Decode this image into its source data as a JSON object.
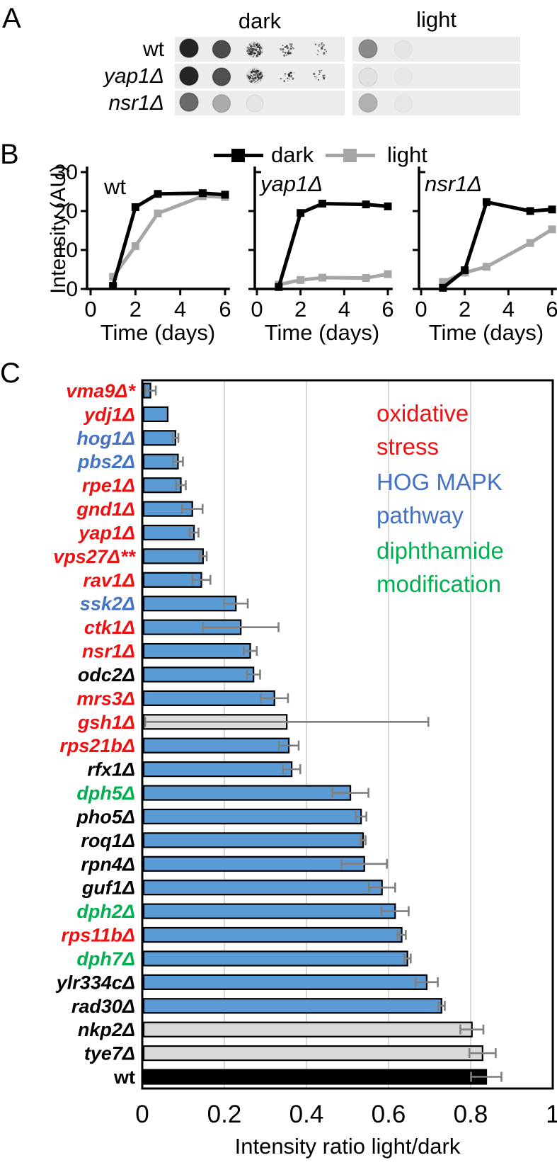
{
  "colors": {
    "red": "#ee1111",
    "blue": "#4472c4",
    "green": "#00b050",
    "bar_blue": "#5b9bd5",
    "bar_gray": "#d9d9d9",
    "bar_black": "#000000",
    "error_gray": "#7f7f7f",
    "grid_gray": "#d9d9d9",
    "strip_bg": "#ececec",
    "dark_series": "#000000",
    "light_series": "#a6a6a6"
  },
  "panel_a": {
    "label": "A",
    "headers": {
      "dark": "dark",
      "light": "light"
    },
    "rows": [
      {
        "name": "wt",
        "italic": false,
        "dark_spots": [
          {
            "darkness": 0.92,
            "style": "solid"
          },
          {
            "darkness": 0.74,
            "style": "solid"
          },
          {
            "darkness": 0.5,
            "style": "speckle"
          },
          {
            "darkness": 0.2,
            "style": "dots"
          },
          {
            "darkness": 0.07,
            "style": "dots"
          }
        ],
        "light_spots": [
          {
            "darkness": 0.45,
            "style": "solid"
          },
          {
            "darkness": 0.07,
            "style": "faint"
          },
          {
            "darkness": 0,
            "style": "none"
          },
          {
            "darkness": 0,
            "style": "none"
          },
          {
            "darkness": 0,
            "style": "none"
          }
        ]
      },
      {
        "name": "yap1Δ",
        "italic": true,
        "dark_spots": [
          {
            "darkness": 0.92,
            "style": "solid"
          },
          {
            "darkness": 0.72,
            "style": "solid"
          },
          {
            "darkness": 0.48,
            "style": "speckle"
          },
          {
            "darkness": 0.17,
            "style": "dots"
          },
          {
            "darkness": 0.06,
            "style": "dots"
          }
        ],
        "light_spots": [
          {
            "darkness": 0.13,
            "style": "faint"
          },
          {
            "darkness": 0.04,
            "style": "faint"
          },
          {
            "darkness": 0,
            "style": "none"
          },
          {
            "darkness": 0,
            "style": "none"
          },
          {
            "darkness": 0,
            "style": "none"
          }
        ]
      },
      {
        "name": "nsr1Δ",
        "italic": true,
        "dark_spots": [
          {
            "darkness": 0.6,
            "style": "solid"
          },
          {
            "darkness": 0.3,
            "style": "solid"
          },
          {
            "darkness": 0.1,
            "style": "faint"
          },
          {
            "darkness": 0,
            "style": "none"
          },
          {
            "darkness": 0,
            "style": "none"
          }
        ],
        "light_spots": [
          {
            "darkness": 0.27,
            "style": "solid"
          },
          {
            "darkness": 0.05,
            "style": "faint"
          },
          {
            "darkness": 0,
            "style": "none"
          },
          {
            "darkness": 0,
            "style": "none"
          },
          {
            "darkness": 0,
            "style": "none"
          }
        ]
      }
    ]
  },
  "panel_b": {
    "label": "B"
  },
  "panel_c": {
    "label": "C",
    "legend": [
      {
        "text": "oxidative\nstress",
        "color_key": "red"
      },
      {
        "text": "HOG MAPK\npathway",
        "color_key": "blue"
      },
      {
        "text": "diphthamide\nmodification",
        "color_key": "green"
      }
    ]
  },
  "chart_data": [
    {
      "type": "line",
      "title": "wt",
      "title_italic": false,
      "xlabel": "Time (days)",
      "ylabel": "Intensity (AU)",
      "x": [
        1,
        2,
        3,
        5,
        6
      ],
      "xlim": [
        0,
        6
      ],
      "ylim": [
        0,
        30
      ],
      "xticks": [
        0,
        2,
        4,
        6
      ],
      "yticks": [
        0,
        10,
        20,
        30
      ],
      "show_ytick_labels": true,
      "series": [
        {
          "name": "dark",
          "color": "#000000",
          "values": [
            0.8,
            21.0,
            24.4,
            24.6,
            24.2
          ]
        },
        {
          "name": "light",
          "color": "#a6a6a6",
          "values": [
            3.1,
            11.0,
            19.4,
            23.8,
            23.6
          ]
        }
      ],
      "legend_position": "top"
    },
    {
      "type": "line",
      "title": "yap1Δ",
      "title_italic": true,
      "xlabel": "Time (days)",
      "ylabel": "",
      "x": [
        1,
        2,
        3,
        5,
        6
      ],
      "xlim": [
        0,
        6
      ],
      "ylim": [
        0,
        30
      ],
      "xticks": [
        0,
        2,
        4,
        6
      ],
      "yticks": [
        0,
        10,
        20,
        30
      ],
      "show_ytick_labels": false,
      "series": [
        {
          "name": "dark",
          "color": "#000000",
          "values": [
            0.5,
            19.5,
            21.9,
            21.7,
            21.2
          ]
        },
        {
          "name": "light",
          "color": "#a6a6a6",
          "values": [
            1.1,
            2.3,
            2.9,
            2.8,
            3.8
          ]
        }
      ]
    },
    {
      "type": "line",
      "title": "nsr1Δ",
      "title_italic": true,
      "xlabel": "Time (days)",
      "ylabel": "",
      "x": [
        1,
        2,
        3,
        5,
        6
      ],
      "xlim": [
        0,
        6
      ],
      "ylim": [
        0,
        30
      ],
      "xticks": [
        0,
        2,
        4,
        6
      ],
      "yticks": [
        0,
        10,
        20,
        30
      ],
      "show_ytick_labels": false,
      "series": [
        {
          "name": "dark",
          "color": "#000000",
          "values": [
            0.3,
            4.8,
            22.3,
            20.0,
            20.4
          ]
        },
        {
          "name": "light",
          "color": "#a6a6a6",
          "values": [
            1.8,
            4.2,
            5.7,
            11.8,
            15.3
          ]
        }
      ]
    },
    {
      "type": "bar",
      "orientation": "horizontal",
      "xlabel": "Intensity ratio light/dark",
      "xlim": [
        0,
        1
      ],
      "xticks": [
        0,
        0.2,
        0.4,
        0.6,
        0.8,
        1
      ],
      "grid": true,
      "categories": [
        "vma9Δ*",
        "ydj1Δ",
        "hog1Δ",
        "pbs2Δ",
        "rpe1Δ",
        "gnd1Δ",
        "yap1Δ",
        "vps27Δ**",
        "rav1Δ",
        "ssk2Δ",
        "ctk1Δ",
        "nsr1Δ",
        "odc2Δ",
        "mrs3Δ",
        "gsh1Δ",
        "rps21bΔ",
        "rfx1Δ",
        "dph5Δ",
        "pho5Δ",
        "roq1Δ",
        "rpn4Δ",
        "guf1Δ",
        "dph2Δ",
        "rps11bΔ",
        "dph7Δ",
        "ylr334cΔ",
        "rad30Δ",
        "nkp2Δ",
        "tye7Δ",
        "wt"
      ],
      "values": [
        0.02,
        0.062,
        0.081,
        0.087,
        0.094,
        0.122,
        0.126,
        0.148,
        0.144,
        0.228,
        0.24,
        0.263,
        0.271,
        0.322,
        0.352,
        0.357,
        0.364,
        0.507,
        0.533,
        0.538,
        0.541,
        0.584,
        0.616,
        0.632,
        0.646,
        0.693,
        0.729,
        0.803,
        0.829,
        0.838
      ],
      "errors": [
        0.013,
        0,
        0.007,
        0.012,
        0.012,
        0.025,
        0.011,
        0.009,
        0.022,
        0.029,
        0.092,
        0.016,
        0.016,
        0.033,
        0.345,
        0.024,
        0.021,
        0.044,
        0.013,
        0.006,
        0.055,
        0.032,
        0.033,
        0.01,
        0.008,
        0.027,
        0.008,
        0.028,
        0.032,
        0.037
      ],
      "bar_colors": [
        "#5b9bd5",
        "#5b9bd5",
        "#5b9bd5",
        "#5b9bd5",
        "#5b9bd5",
        "#5b9bd5",
        "#5b9bd5",
        "#5b9bd5",
        "#5b9bd5",
        "#5b9bd5",
        "#5b9bd5",
        "#5b9bd5",
        "#5b9bd5",
        "#5b9bd5",
        "#dcdcdc",
        "#5b9bd5",
        "#5b9bd5",
        "#5b9bd5",
        "#5b9bd5",
        "#5b9bd5",
        "#5b9bd5",
        "#5b9bd5",
        "#5b9bd5",
        "#5b9bd5",
        "#5b9bd5",
        "#5b9bd5",
        "#5b9bd5",
        "#d9d9d9",
        "#d9d9d9",
        "#000000"
      ],
      "label_colors": [
        "#ee1111",
        "#ee1111",
        "#4472c4",
        "#4472c4",
        "#ee1111",
        "#ee1111",
        "#ee1111",
        "#ee1111",
        "#ee1111",
        "#4472c4",
        "#ee1111",
        "#ee1111",
        "#000000",
        "#ee1111",
        "#ee1111",
        "#ee1111",
        "#000000",
        "#00b050",
        "#000000",
        "#000000",
        "#000000",
        "#000000",
        "#00b050",
        "#ee1111",
        "#00b050",
        "#000000",
        "#000000",
        "#000000",
        "#000000",
        "#000000"
      ],
      "label_italic": [
        true,
        true,
        true,
        true,
        true,
        true,
        true,
        true,
        true,
        true,
        true,
        true,
        true,
        true,
        true,
        true,
        true,
        true,
        true,
        true,
        true,
        true,
        true,
        true,
        true,
        true,
        true,
        true,
        true,
        false
      ]
    }
  ]
}
